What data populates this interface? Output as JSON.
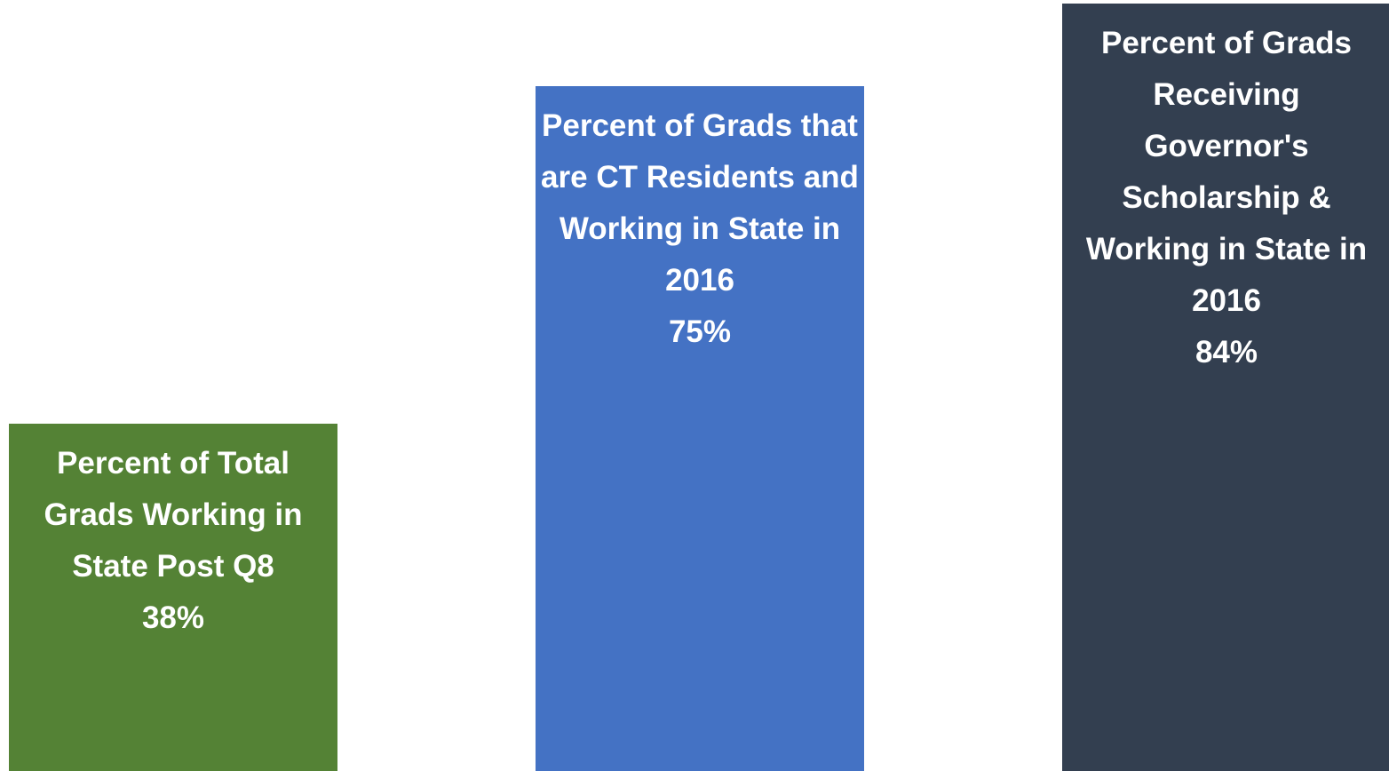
{
  "chart_data": {
    "type": "bar",
    "categories": [
      "Percent of Total Grads Working in State Post Q8",
      "Percent of Grads that are CT Residents and Working in State in 2016",
      "Percent of Grads Receiving Governor's Scholarship & Working in State in 2016"
    ],
    "values": [
      38,
      75,
      84
    ],
    "value_labels": [
      "38%",
      "75%",
      "84%"
    ],
    "colors": [
      "#548235",
      "#4472c4",
      "#333f50"
    ]
  }
}
